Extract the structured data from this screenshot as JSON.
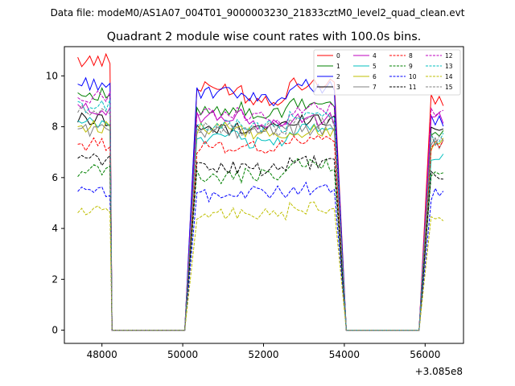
{
  "chart_data": {
    "type": "line",
    "suptitle": "Data file: modeM0/AS1A07_004T01_9000003230_21833cztM0_level2_quad_clean.evt",
    "title": "Quadrant 2 module wise count rates with 100.0s bins.",
    "xlabel": "",
    "ylabel": "",
    "x_offset_label": "+3.085e8",
    "xlim": [
      47070,
      56950
    ],
    "ylim": [
      -0.52,
      11.15
    ],
    "xticks": [
      48000,
      50000,
      52000,
      54000,
      56000
    ],
    "yticks": [
      0,
      2,
      4,
      6,
      8,
      10
    ],
    "legend_position": "top-right",
    "grid": false,
    "x_segments": [
      {
        "start": 47400,
        "step": 100,
        "n": 9
      },
      {
        "start": 48250,
        "step": 100,
        "n": 19
      },
      {
        "start": 50350,
        "step": 100,
        "n": 35
      },
      {
        "start": 54050,
        "step": 100,
        "n": 19
      },
      {
        "start": 56150,
        "step": 100,
        "n": 4
      }
    ],
    "series": [
      {
        "name": "0",
        "color": "#ff0000",
        "dash": false,
        "levels": [
          10.6,
          9.5,
          9.1,
          9.7,
          9.0
        ]
      },
      {
        "name": "1",
        "color": "#008000",
        "dash": false,
        "levels": [
          9.3,
          8.7,
          8.5,
          8.9,
          7.7
        ]
      },
      {
        "name": "2",
        "color": "#0000ff",
        "dash": false,
        "levels": [
          9.7,
          9.3,
          9.1,
          9.6,
          8.2
        ]
      },
      {
        "name": "3",
        "color": "#000000",
        "dash": false,
        "levels": [
          8.3,
          7.9,
          8.0,
          8.3,
          7.9
        ]
      },
      {
        "name": "4",
        "color": "#bf00bf",
        "dash": false,
        "levels": [
          8.7,
          8.4,
          8.1,
          8.3,
          8.4
        ]
      },
      {
        "name": "5",
        "color": "#00bfbf",
        "dash": false,
        "levels": [
          8.1,
          7.6,
          7.4,
          7.9,
          6.9
        ]
      },
      {
        "name": "6",
        "color": "#bfbf00",
        "dash": false,
        "levels": [
          8.0,
          7.9,
          7.7,
          7.8,
          7.3
        ]
      },
      {
        "name": "7",
        "color": "#808080",
        "dash": false,
        "levels": [
          7.9,
          7.8,
          7.8,
          7.9,
          7.4
        ]
      },
      {
        "name": "8",
        "color": "#ff0000",
        "dash": true,
        "levels": [
          7.3,
          7.2,
          7.2,
          7.5,
          7.2
        ]
      },
      {
        "name": "9",
        "color": "#008000",
        "dash": true,
        "levels": [
          6.3,
          6.0,
          6.1,
          6.5,
          6.2
        ]
      },
      {
        "name": "10",
        "color": "#0000ff",
        "dash": true,
        "levels": [
          5.4,
          5.3,
          5.4,
          5.6,
          5.3
        ]
      },
      {
        "name": "11",
        "color": "#000000",
        "dash": true,
        "levels": [
          6.7,
          6.4,
          6.3,
          6.6,
          6.2
        ]
      },
      {
        "name": "12",
        "color": "#bf00bf",
        "dash": true,
        "levels": [
          9.2,
          8.5,
          8.3,
          8.7,
          8.5
        ]
      },
      {
        "name": "13",
        "color": "#00bfbf",
        "dash": true,
        "levels": [
          8.8,
          8.1,
          8.0,
          8.4,
          7.6
        ]
      },
      {
        "name": "14",
        "color": "#bfbf00",
        "dash": true,
        "levels": [
          4.7,
          4.6,
          4.5,
          4.8,
          4.4
        ]
      },
      {
        "name": "15",
        "color": "#808080",
        "dash": true,
        "levels": [
          8.6,
          7.9,
          7.9,
          8.2,
          7.5
        ]
      }
    ]
  }
}
